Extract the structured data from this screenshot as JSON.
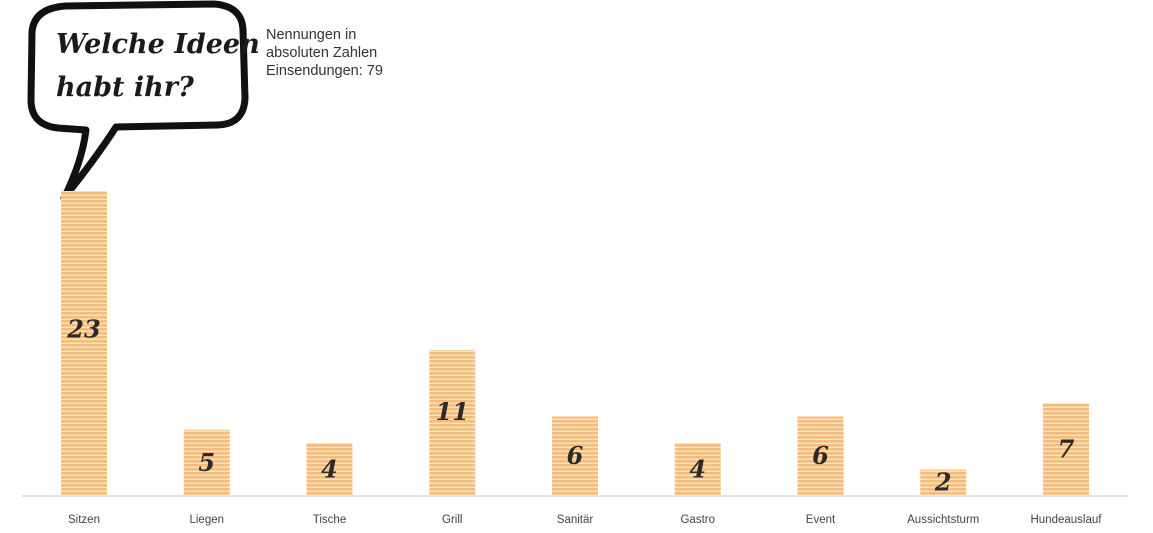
{
  "chart_data": {
    "type": "bar",
    "title": "Welche Ideen habt ihr?",
    "title_lines": [
      "Welche Ideen",
      "habt ihr?"
    ],
    "subtitle_lines": [
      "Nennungen in",
      "absoluten Zahlen",
      "Einsendungen: 79"
    ],
    "categories": [
      "Sitzen",
      "Liegen",
      "Tische",
      "Grill",
      "Sanitär",
      "Gastro",
      "Event",
      "Aussichtsturm",
      "Hundeauslauf"
    ],
    "values": [
      23,
      5,
      4,
      11,
      6,
      4,
      6,
      2,
      7
    ],
    "ylim": [
      0,
      23
    ],
    "grid": false,
    "legend": "none",
    "bar_color": "#f6bc7a",
    "bar_stripe_color": "#fde3c4",
    "label_color": "#2a2a2a"
  }
}
